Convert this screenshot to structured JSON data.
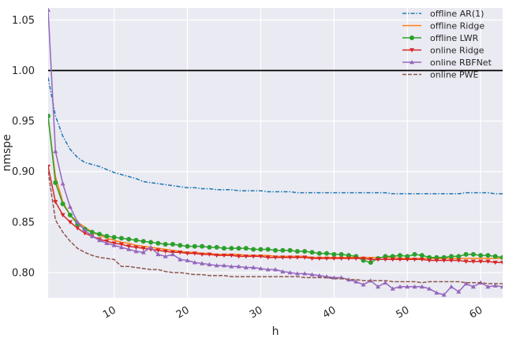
{
  "chart_data": {
    "type": "line",
    "xlabel": "h",
    "ylabel": "nmspe",
    "xlim": [
      1,
      63
    ],
    "ylim": [
      0.775,
      1.062
    ],
    "x_ticks": [
      10,
      20,
      30,
      40,
      50,
      60
    ],
    "y_ticks": [
      0.8,
      0.85,
      0.9,
      0.95,
      1.0,
      1.05
    ],
    "x_tick_labels": [
      "10",
      "20",
      "30",
      "40",
      "50",
      "60"
    ],
    "y_tick_labels": [
      "0.80",
      "0.85",
      "0.90",
      "0.95",
      "1.00",
      "1.05"
    ],
    "grid": true,
    "legend_position": "top-right",
    "reference_line": {
      "y": 1.0,
      "color": "#000000"
    },
    "colors": {
      "background": "#eaeaf2",
      "grid": "#ffffff",
      "offline_ar1": "#1f77b4",
      "offline_ridge": "#ff7f0e",
      "offline_lwr": "#2ca02c",
      "online_ridge": "#d62728",
      "online_rbfnet": "#9467bd",
      "online_pwe": "#8c564b"
    },
    "series": [
      {
        "name": "offline AR(1)",
        "style": "dashdot",
        "marker": "none",
        "color_key": "offline_ar1",
        "x": [
          1,
          2,
          3,
          4,
          5,
          6,
          7,
          8,
          9,
          10,
          11,
          12,
          13,
          14,
          15,
          16,
          17,
          18,
          19,
          20,
          21,
          22,
          23,
          24,
          25,
          26,
          27,
          28,
          29,
          30,
          31,
          32,
          33,
          34,
          35,
          36,
          37,
          38,
          39,
          40,
          41,
          42,
          43,
          44,
          45,
          46,
          47,
          48,
          49,
          50,
          51,
          52,
          53,
          54,
          55,
          56,
          57,
          58,
          59,
          60,
          61,
          62,
          63
        ],
        "y": [
          0.993,
          0.955,
          0.935,
          0.922,
          0.914,
          0.909,
          0.907,
          0.905,
          0.902,
          0.899,
          0.897,
          0.895,
          0.893,
          0.89,
          0.889,
          0.888,
          0.887,
          0.886,
          0.885,
          0.884,
          0.884,
          0.883,
          0.883,
          0.882,
          0.882,
          0.882,
          0.881,
          0.881,
          0.881,
          0.881,
          0.88,
          0.88,
          0.88,
          0.88,
          0.879,
          0.879,
          0.879,
          0.879,
          0.879,
          0.879,
          0.879,
          0.879,
          0.879,
          0.879,
          0.879,
          0.879,
          0.879,
          0.878,
          0.878,
          0.878,
          0.878,
          0.878,
          0.878,
          0.878,
          0.878,
          0.878,
          0.878,
          0.879,
          0.879,
          0.879,
          0.879,
          0.878,
          0.878
        ]
      },
      {
        "name": "offline Ridge",
        "style": "solid",
        "marker": "none",
        "color_key": "offline_ridge",
        "x": [
          1,
          2,
          3,
          4,
          5,
          6,
          7,
          8,
          9,
          10,
          11,
          12,
          13,
          14,
          15,
          16,
          17,
          18,
          19,
          20,
          21,
          22,
          23,
          24,
          25,
          26,
          27,
          28,
          29,
          30,
          31,
          32,
          33,
          34,
          35,
          36,
          37,
          38,
          39,
          40,
          41,
          42,
          43,
          44,
          45,
          46,
          47,
          48,
          49,
          50,
          51,
          52,
          53,
          54,
          55,
          56,
          57,
          58,
          59,
          60,
          61,
          62,
          63
        ],
        "y": [
          0.953,
          0.895,
          0.87,
          0.857,
          0.85,
          0.845,
          0.84,
          0.837,
          0.834,
          0.832,
          0.83,
          0.829,
          0.827,
          0.826,
          0.825,
          0.824,
          0.823,
          0.822,
          0.821,
          0.82,
          0.82,
          0.819,
          0.819,
          0.818,
          0.818,
          0.818,
          0.818,
          0.817,
          0.817,
          0.817,
          0.817,
          0.816,
          0.816,
          0.816,
          0.816,
          0.816,
          0.815,
          0.815,
          0.815,
          0.815,
          0.815,
          0.815,
          0.815,
          0.815,
          0.815,
          0.815,
          0.815,
          0.815,
          0.814,
          0.814,
          0.814,
          0.814,
          0.814,
          0.814,
          0.814,
          0.814,
          0.814,
          0.814,
          0.814,
          0.814,
          0.814,
          0.814,
          0.814
        ]
      },
      {
        "name": "offline LWR",
        "style": "solid",
        "marker": "circle",
        "color_key": "offline_lwr",
        "x": [
          1,
          2,
          3,
          4,
          5,
          6,
          7,
          8,
          9,
          10,
          11,
          12,
          13,
          14,
          15,
          16,
          17,
          18,
          19,
          20,
          21,
          22,
          23,
          24,
          25,
          26,
          27,
          28,
          29,
          30,
          31,
          32,
          33,
          34,
          35,
          36,
          37,
          38,
          39,
          40,
          41,
          42,
          43,
          44,
          45,
          46,
          47,
          48,
          49,
          50,
          51,
          52,
          53,
          54,
          55,
          56,
          57,
          58,
          59,
          60,
          61,
          62,
          63
        ],
        "y": [
          0.955,
          0.889,
          0.868,
          0.857,
          0.848,
          0.843,
          0.84,
          0.838,
          0.836,
          0.835,
          0.834,
          0.833,
          0.832,
          0.831,
          0.83,
          0.829,
          0.828,
          0.828,
          0.827,
          0.826,
          0.826,
          0.826,
          0.825,
          0.825,
          0.824,
          0.824,
          0.824,
          0.824,
          0.823,
          0.823,
          0.823,
          0.822,
          0.822,
          0.822,
          0.821,
          0.821,
          0.82,
          0.819,
          0.819,
          0.818,
          0.818,
          0.817,
          0.816,
          0.812,
          0.81,
          0.814,
          0.816,
          0.816,
          0.817,
          0.816,
          0.818,
          0.817,
          0.815,
          0.815,
          0.815,
          0.816,
          0.816,
          0.818,
          0.818,
          0.817,
          0.817,
          0.816,
          0.815
        ]
      },
      {
        "name": "online Ridge",
        "style": "solid",
        "marker": "triangle-down",
        "color_key": "online_ridge",
        "x": [
          1,
          2,
          3,
          4,
          5,
          6,
          7,
          8,
          9,
          10,
          11,
          12,
          13,
          14,
          15,
          16,
          17,
          18,
          19,
          20,
          21,
          22,
          23,
          24,
          25,
          26,
          27,
          28,
          29,
          30,
          31,
          32,
          33,
          34,
          35,
          36,
          37,
          38,
          39,
          40,
          41,
          42,
          43,
          44,
          45,
          46,
          47,
          48,
          49,
          50,
          51,
          52,
          53,
          54,
          55,
          56,
          57,
          58,
          59,
          60,
          61,
          62,
          63
        ],
        "y": [
          0.905,
          0.87,
          0.857,
          0.85,
          0.844,
          0.839,
          0.836,
          0.833,
          0.831,
          0.829,
          0.828,
          0.826,
          0.825,
          0.824,
          0.823,
          0.822,
          0.821,
          0.82,
          0.82,
          0.819,
          0.819,
          0.818,
          0.818,
          0.817,
          0.817,
          0.817,
          0.816,
          0.816,
          0.816,
          0.816,
          0.815,
          0.815,
          0.815,
          0.815,
          0.815,
          0.815,
          0.814,
          0.814,
          0.814,
          0.814,
          0.814,
          0.814,
          0.814,
          0.814,
          0.813,
          0.813,
          0.813,
          0.813,
          0.813,
          0.813,
          0.813,
          0.813,
          0.812,
          0.812,
          0.812,
          0.812,
          0.812,
          0.811,
          0.811,
          0.811,
          0.811,
          0.81,
          0.81
        ]
      },
      {
        "name": "online RBFNet",
        "style": "solid",
        "marker": "triangle-up",
        "color_key": "online_rbfnet",
        "x": [
          1,
          2,
          3,
          4,
          5,
          6,
          7,
          8,
          9,
          10,
          11,
          12,
          13,
          14,
          15,
          16,
          17,
          18,
          19,
          20,
          21,
          22,
          23,
          24,
          25,
          26,
          27,
          28,
          29,
          30,
          31,
          32,
          33,
          34,
          35,
          36,
          37,
          38,
          39,
          40,
          41,
          42,
          43,
          44,
          45,
          46,
          47,
          48,
          49,
          50,
          51,
          52,
          53,
          54,
          55,
          56,
          57,
          58,
          59,
          60,
          61,
          62,
          63
        ],
        "y": [
          1.06,
          0.92,
          0.888,
          0.865,
          0.85,
          0.842,
          0.836,
          0.832,
          0.829,
          0.827,
          0.825,
          0.823,
          0.821,
          0.82,
          0.825,
          0.818,
          0.816,
          0.818,
          0.813,
          0.812,
          0.81,
          0.809,
          0.808,
          0.807,
          0.807,
          0.806,
          0.806,
          0.805,
          0.805,
          0.804,
          0.803,
          0.803,
          0.801,
          0.8,
          0.799,
          0.799,
          0.798,
          0.797,
          0.796,
          0.795,
          0.795,
          0.793,
          0.791,
          0.788,
          0.792,
          0.786,
          0.79,
          0.784,
          0.786,
          0.786,
          0.786,
          0.786,
          0.784,
          0.78,
          0.778,
          0.786,
          0.781,
          0.789,
          0.786,
          0.79,
          0.786,
          0.787,
          0.786
        ]
      },
      {
        "name": "online PWE",
        "style": "dashed",
        "marker": "none",
        "color_key": "online_pwe",
        "x": [
          1,
          2,
          3,
          4,
          5,
          6,
          7,
          8,
          9,
          10,
          11,
          12,
          13,
          14,
          15,
          16,
          17,
          18,
          19,
          20,
          21,
          22,
          23,
          24,
          25,
          26,
          27,
          28,
          29,
          30,
          31,
          32,
          33,
          34,
          35,
          36,
          37,
          38,
          39,
          40,
          41,
          42,
          43,
          44,
          45,
          46,
          47,
          48,
          49,
          50,
          51,
          52,
          53,
          54,
          55,
          56,
          57,
          58,
          59,
          60,
          61,
          62,
          63
        ],
        "y": [
          0.9,
          0.852,
          0.84,
          0.831,
          0.824,
          0.82,
          0.817,
          0.815,
          0.814,
          0.813,
          0.806,
          0.806,
          0.805,
          0.804,
          0.803,
          0.803,
          0.801,
          0.8,
          0.8,
          0.799,
          0.798,
          0.798,
          0.797,
          0.797,
          0.797,
          0.796,
          0.796,
          0.796,
          0.796,
          0.796,
          0.796,
          0.796,
          0.796,
          0.796,
          0.796,
          0.795,
          0.795,
          0.795,
          0.795,
          0.794,
          0.794,
          0.793,
          0.793,
          0.792,
          0.792,
          0.792,
          0.792,
          0.791,
          0.791,
          0.791,
          0.791,
          0.79,
          0.791,
          0.791,
          0.791,
          0.791,
          0.791,
          0.79,
          0.79,
          0.79,
          0.789,
          0.789,
          0.789
        ]
      }
    ]
  }
}
